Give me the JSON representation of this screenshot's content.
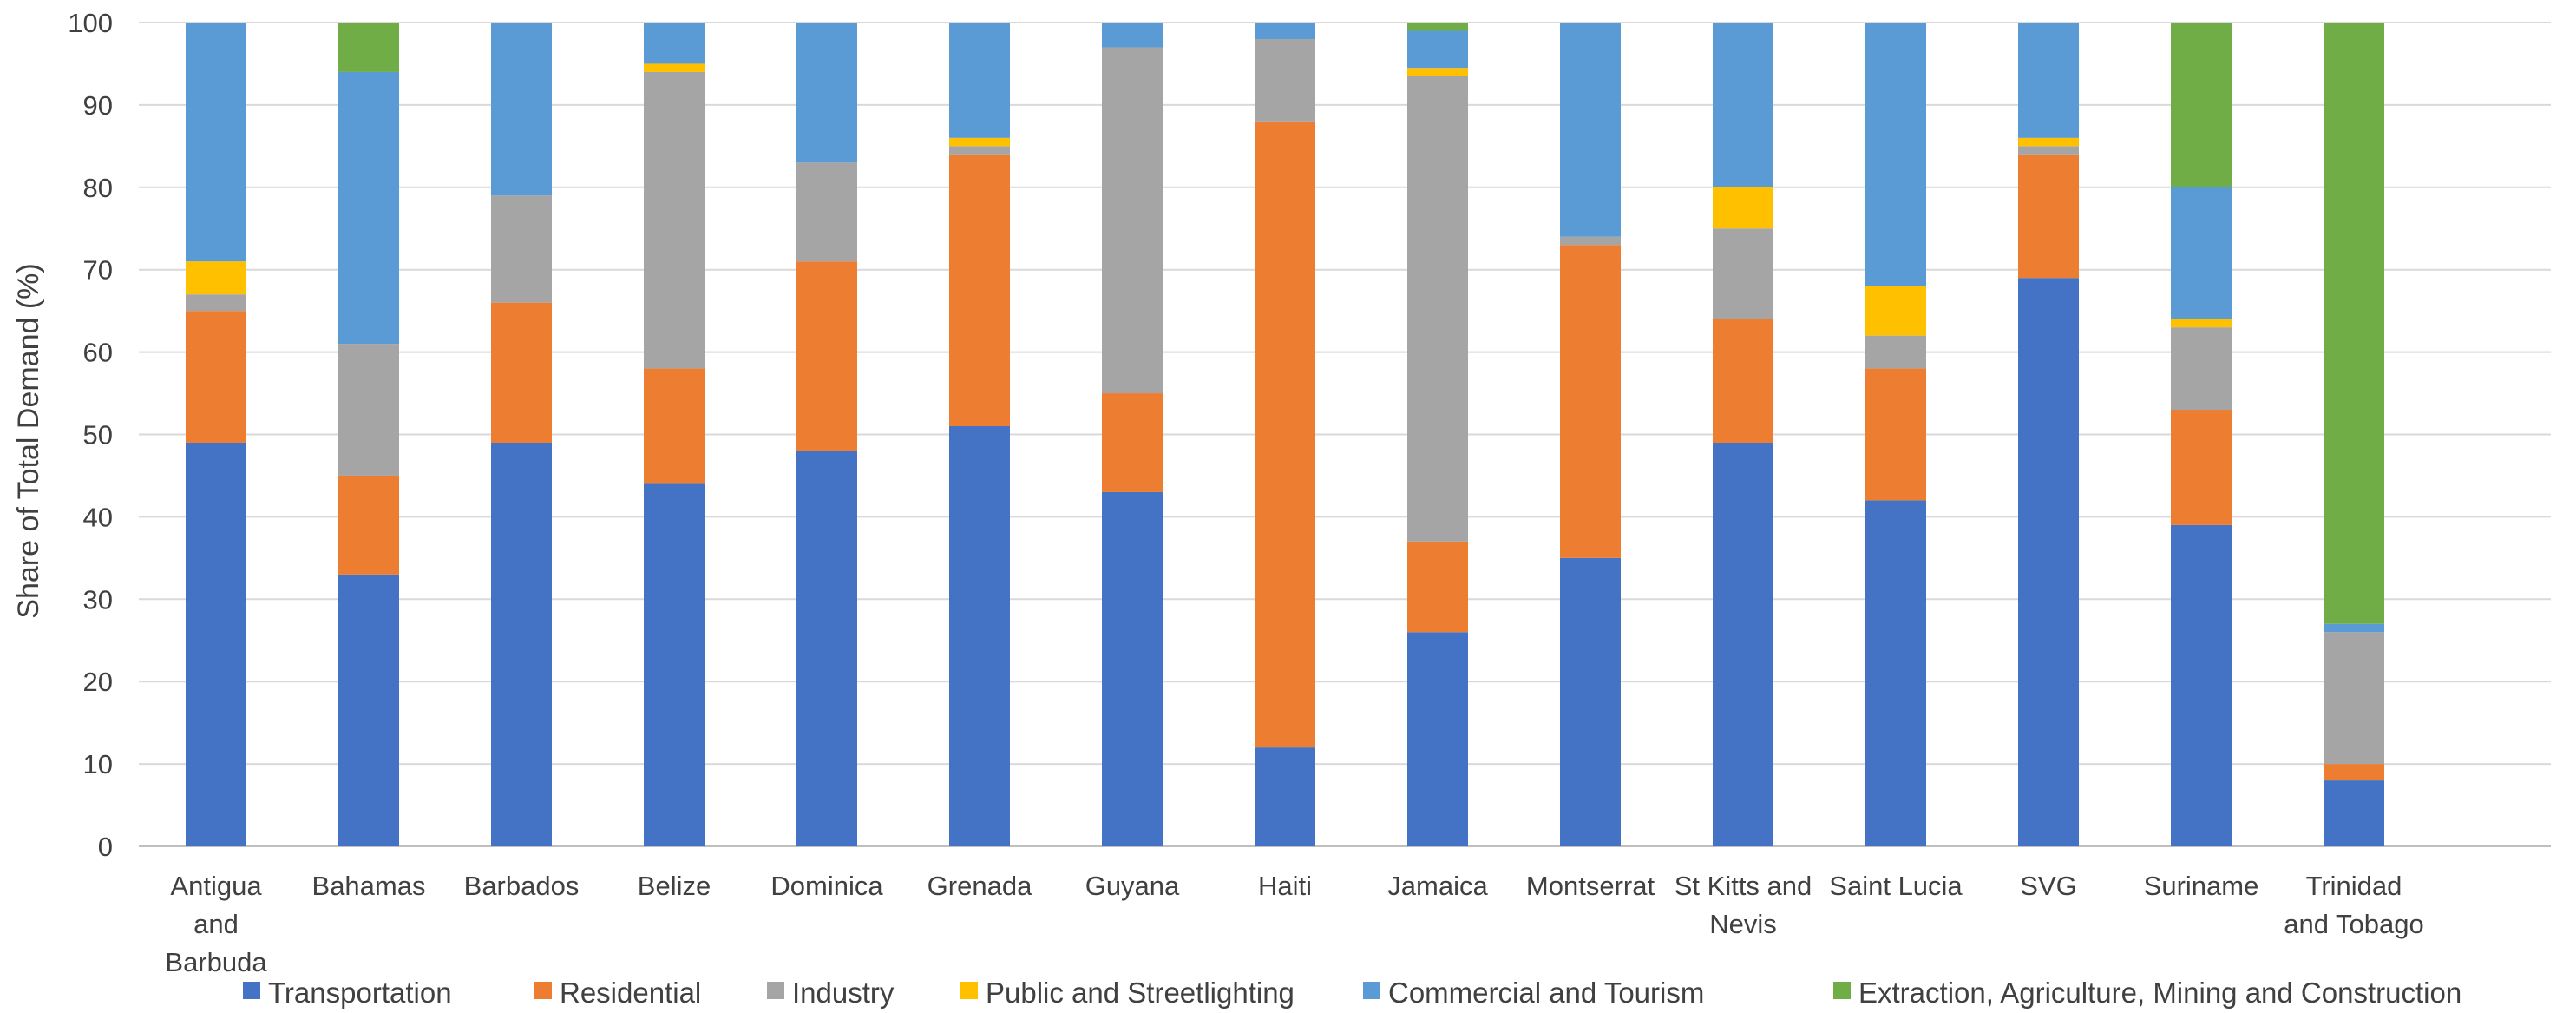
{
  "chart_data": {
    "type": "bar",
    "stacked": true,
    "ylabel": "Share of Total Demand (%)",
    "xlabel": "",
    "ylim": [
      0,
      100
    ],
    "yticks": [
      0,
      10,
      20,
      30,
      40,
      50,
      60,
      70,
      80,
      90,
      100
    ],
    "grid": true,
    "legend": "bottom",
    "categories": [
      [
        "Antigua",
        "and",
        "Barbuda"
      ],
      [
        "Bahamas"
      ],
      [
        "Barbados"
      ],
      [
        "Belize"
      ],
      [
        "Dominica"
      ],
      [
        "Grenada"
      ],
      [
        "Guyana"
      ],
      [
        "Haiti"
      ],
      [
        "Jamaica"
      ],
      [
        "Montserrat"
      ],
      [
        "St Kitts and",
        "Nevis"
      ],
      [
        "Saint Lucia"
      ],
      [
        "SVG"
      ],
      [
        "Suriname"
      ],
      [
        "Trinidad",
        "and Tobago"
      ]
    ],
    "series": [
      {
        "name": "Transportation",
        "color": "#4472C4",
        "values": [
          49,
          33,
          49,
          44,
          48,
          51,
          43,
          12,
          26,
          35,
          49,
          42,
          69,
          39,
          8
        ]
      },
      {
        "name": "Residential",
        "color": "#ED7D31",
        "values": [
          16,
          12,
          17,
          14,
          23,
          33,
          12,
          76,
          11,
          38,
          15,
          16,
          15,
          14,
          2
        ]
      },
      {
        "name": "Industry",
        "color": "#A5A5A5",
        "values": [
          2,
          16,
          13,
          36,
          12,
          1,
          42,
          10,
          56.5,
          1,
          11,
          4,
          1,
          10,
          16
        ]
      },
      {
        "name": "Public and Streetlighting",
        "color": "#FFC000",
        "values": [
          4,
          0,
          0,
          1,
          0,
          1,
          0,
          0,
          1,
          0,
          5,
          6,
          1,
          1,
          0
        ]
      },
      {
        "name": "Commercial and Tourism",
        "color": "#5B9BD5",
        "values": [
          29,
          33,
          21,
          5,
          17,
          14,
          3,
          2,
          4.5,
          26,
          20,
          32,
          14,
          16,
          1
        ]
      },
      {
        "name": "Extraction, Agriculture, Mining and Construction",
        "color": "#70AD47",
        "values": [
          0,
          6,
          0,
          0,
          0,
          0,
          0,
          0,
          1,
          0,
          0,
          0,
          0,
          20,
          73
        ]
      }
    ]
  }
}
